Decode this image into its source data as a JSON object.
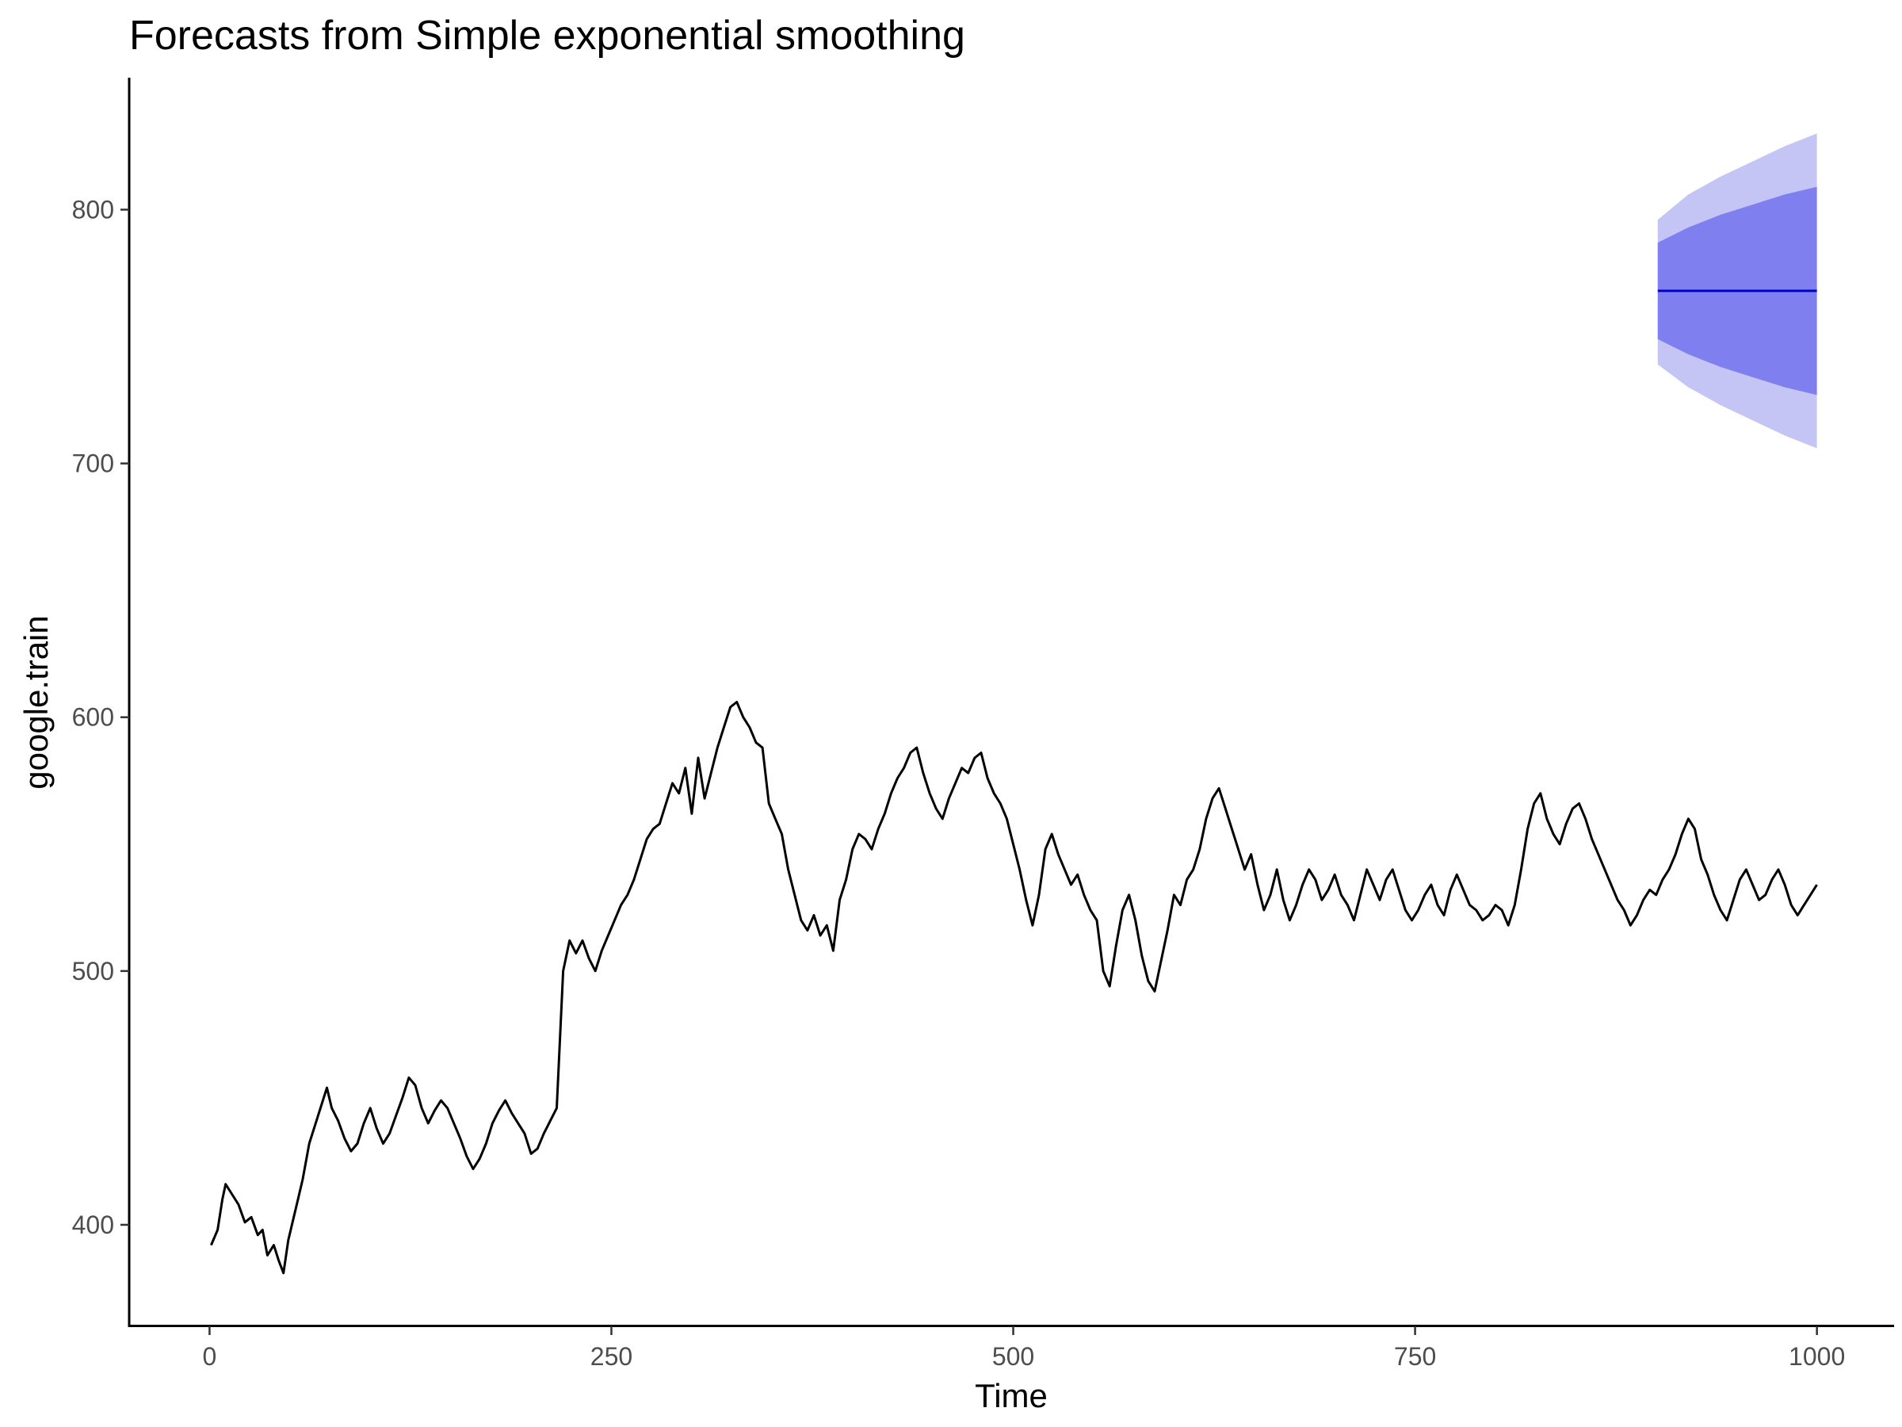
{
  "chart_data": {
    "type": "line",
    "title": "Forecasts from Simple exponential smoothing",
    "xlabel": "Time",
    "ylabel": "google.train",
    "xlim": [
      -50,
      1048
    ],
    "ylim": [
      360,
      852
    ],
    "x_ticks": [
      0,
      250,
      500,
      750,
      1000
    ],
    "y_ticks": [
      400,
      500,
      600,
      700,
      800
    ],
    "grid": false,
    "legend": "none",
    "colors": {
      "observed": "#000000",
      "forecast_line": "#0000cc",
      "interval_80": "#7f7fef",
      "interval_95": "#c4c4f5"
    },
    "series": [
      {
        "role": "observed",
        "points": [
          [
            1,
            392
          ],
          [
            5,
            398
          ],
          [
            8,
            410
          ],
          [
            10,
            416
          ],
          [
            14,
            412
          ],
          [
            18,
            408
          ],
          [
            22,
            401
          ],
          [
            26,
            403
          ],
          [
            30,
            396
          ],
          [
            33,
            398
          ],
          [
            36,
            388
          ],
          [
            40,
            392
          ],
          [
            43,
            386
          ],
          [
            46,
            381
          ],
          [
            49,
            394
          ],
          [
            52,
            402
          ],
          [
            55,
            410
          ],
          [
            58,
            418
          ],
          [
            62,
            432
          ],
          [
            66,
            440
          ],
          [
            70,
            448
          ],
          [
            73,
            454
          ],
          [
            76,
            446
          ],
          [
            80,
            441
          ],
          [
            84,
            434
          ],
          [
            88,
            429
          ],
          [
            92,
            432
          ],
          [
            96,
            440
          ],
          [
            100,
            446
          ],
          [
            104,
            438
          ],
          [
            108,
            432
          ],
          [
            112,
            436
          ],
          [
            116,
            443
          ],
          [
            120,
            450
          ],
          [
            124,
            458
          ],
          [
            128,
            455
          ],
          [
            132,
            446
          ],
          [
            136,
            440
          ],
          [
            140,
            445
          ],
          [
            144,
            449
          ],
          [
            148,
            446
          ],
          [
            152,
            440
          ],
          [
            156,
            434
          ],
          [
            160,
            427
          ],
          [
            164,
            422
          ],
          [
            168,
            426
          ],
          [
            172,
            432
          ],
          [
            176,
            440
          ],
          [
            180,
            445
          ],
          [
            184,
            449
          ],
          [
            188,
            444
          ],
          [
            192,
            440
          ],
          [
            196,
            436
          ],
          [
            200,
            428
          ],
          [
            204,
            430
          ],
          [
            208,
            436
          ],
          [
            212,
            441
          ],
          [
            216,
            446
          ],
          [
            220,
            500
          ],
          [
            224,
            512
          ],
          [
            228,
            507
          ],
          [
            232,
            512
          ],
          [
            236,
            505
          ],
          [
            240,
            500
          ],
          [
            244,
            508
          ],
          [
            248,
            514
          ],
          [
            252,
            520
          ],
          [
            256,
            526
          ],
          [
            260,
            530
          ],
          [
            264,
            536
          ],
          [
            268,
            544
          ],
          [
            272,
            552
          ],
          [
            276,
            556
          ],
          [
            280,
            558
          ],
          [
            284,
            566
          ],
          [
            288,
            574
          ],
          [
            292,
            570
          ],
          [
            296,
            580
          ],
          [
            300,
            562
          ],
          [
            304,
            584
          ],
          [
            308,
            568
          ],
          [
            312,
            578
          ],
          [
            316,
            588
          ],
          [
            320,
            596
          ],
          [
            324,
            604
          ],
          [
            328,
            606
          ],
          [
            332,
            600
          ],
          [
            336,
            596
          ],
          [
            340,
            590
          ],
          [
            344,
            588
          ],
          [
            348,
            566
          ],
          [
            352,
            560
          ],
          [
            356,
            554
          ],
          [
            360,
            540
          ],
          [
            364,
            530
          ],
          [
            368,
            520
          ],
          [
            372,
            516
          ],
          [
            376,
            522
          ],
          [
            380,
            514
          ],
          [
            384,
            518
          ],
          [
            388,
            508
          ],
          [
            392,
            528
          ],
          [
            396,
            536
          ],
          [
            400,
            548
          ],
          [
            404,
            554
          ],
          [
            408,
            552
          ],
          [
            412,
            548
          ],
          [
            416,
            556
          ],
          [
            420,
            562
          ],
          [
            424,
            570
          ],
          [
            428,
            576
          ],
          [
            432,
            580
          ],
          [
            436,
            586
          ],
          [
            440,
            588
          ],
          [
            444,
            578
          ],
          [
            448,
            570
          ],
          [
            452,
            564
          ],
          [
            456,
            560
          ],
          [
            460,
            568
          ],
          [
            464,
            574
          ],
          [
            468,
            580
          ],
          [
            472,
            578
          ],
          [
            476,
            584
          ],
          [
            480,
            586
          ],
          [
            484,
            576
          ],
          [
            488,
            570
          ],
          [
            492,
            566
          ],
          [
            496,
            560
          ],
          [
            500,
            550
          ],
          [
            504,
            540
          ],
          [
            508,
            528
          ],
          [
            512,
            518
          ],
          [
            516,
            530
          ],
          [
            520,
            548
          ],
          [
            524,
            554
          ],
          [
            528,
            546
          ],
          [
            532,
            540
          ],
          [
            536,
            534
          ],
          [
            540,
            538
          ],
          [
            544,
            530
          ],
          [
            548,
            524
          ],
          [
            552,
            520
          ],
          [
            556,
            500
          ],
          [
            560,
            494
          ],
          [
            564,
            510
          ],
          [
            568,
            524
          ],
          [
            572,
            530
          ],
          [
            576,
            520
          ],
          [
            580,
            506
          ],
          [
            584,
            496
          ],
          [
            588,
            492
          ],
          [
            592,
            504
          ],
          [
            596,
            516
          ],
          [
            600,
            530
          ],
          [
            604,
            526
          ],
          [
            608,
            536
          ],
          [
            612,
            540
          ],
          [
            616,
            548
          ],
          [
            620,
            560
          ],
          [
            624,
            568
          ],
          [
            628,
            572
          ],
          [
            632,
            564
          ],
          [
            636,
            556
          ],
          [
            640,
            548
          ],
          [
            644,
            540
          ],
          [
            648,
            546
          ],
          [
            652,
            534
          ],
          [
            656,
            524
          ],
          [
            660,
            530
          ],
          [
            664,
            540
          ],
          [
            668,
            528
          ],
          [
            672,
            520
          ],
          [
            676,
            526
          ],
          [
            680,
            534
          ],
          [
            684,
            540
          ],
          [
            688,
            536
          ],
          [
            692,
            528
          ],
          [
            696,
            532
          ],
          [
            700,
            538
          ],
          [
            704,
            530
          ],
          [
            708,
            526
          ],
          [
            712,
            520
          ],
          [
            716,
            530
          ],
          [
            720,
            540
          ],
          [
            724,
            534
          ],
          [
            728,
            528
          ],
          [
            732,
            536
          ],
          [
            736,
            540
          ],
          [
            740,
            532
          ],
          [
            744,
            524
          ],
          [
            748,
            520
          ],
          [
            752,
            524
          ],
          [
            756,
            530
          ],
          [
            760,
            534
          ],
          [
            764,
            526
          ],
          [
            768,
            522
          ],
          [
            772,
            532
          ],
          [
            776,
            538
          ],
          [
            780,
            532
          ],
          [
            784,
            526
          ],
          [
            788,
            524
          ],
          [
            792,
            520
          ],
          [
            796,
            522
          ],
          [
            800,
            526
          ],
          [
            804,
            524
          ],
          [
            808,
            518
          ],
          [
            812,
            526
          ],
          [
            816,
            540
          ],
          [
            820,
            556
          ],
          [
            824,
            566
          ],
          [
            828,
            570
          ],
          [
            832,
            560
          ],
          [
            836,
            554
          ],
          [
            840,
            550
          ],
          [
            844,
            558
          ],
          [
            848,
            564
          ],
          [
            852,
            566
          ],
          [
            856,
            560
          ],
          [
            860,
            552
          ],
          [
            864,
            546
          ],
          [
            868,
            540
          ],
          [
            872,
            534
          ],
          [
            876,
            528
          ],
          [
            880,
            524
          ],
          [
            884,
            518
          ],
          [
            888,
            522
          ],
          [
            892,
            528
          ],
          [
            896,
            532
          ],
          [
            900,
            530
          ],
          [
            904,
            536
          ],
          [
            908,
            540
          ],
          [
            912,
            546
          ],
          [
            916,
            554
          ],
          [
            920,
            560
          ],
          [
            924,
            556
          ],
          [
            928,
            544
          ],
          [
            932,
            538
          ],
          [
            936,
            530
          ],
          [
            940,
            524
          ],
          [
            944,
            520
          ],
          [
            948,
            528
          ],
          [
            952,
            536
          ],
          [
            956,
            540
          ],
          [
            960,
            534
          ],
          [
            964,
            528
          ],
          [
            968,
            530
          ],
          [
            972,
            536
          ],
          [
            976,
            540
          ],
          [
            980,
            534
          ],
          [
            984,
            526
          ],
          [
            988,
            522
          ],
          [
            992,
            526
          ],
          [
            996,
            530
          ],
          [
            1000,
            534
          ]
        ]
      },
      {
        "role": "forecast",
        "points": [
          [
            901,
            768
          ],
          [
            1000,
            768
          ]
        ]
      }
    ],
    "intervals": [
      {
        "role": "interval_95",
        "x": [
          901,
          920,
          940,
          960,
          980,
          1000
        ],
        "lower": [
          739,
          730,
          723,
          717,
          711,
          706
        ],
        "upper": [
          796,
          806,
          813,
          819,
          825,
          830
        ]
      },
      {
        "role": "interval_80",
        "x": [
          901,
          920,
          940,
          960,
          980,
          1000
        ],
        "lower": [
          749,
          743,
          738,
          734,
          730,
          727
        ],
        "upper": [
          787,
          793,
          798,
          802,
          806,
          809
        ]
      }
    ]
  }
}
